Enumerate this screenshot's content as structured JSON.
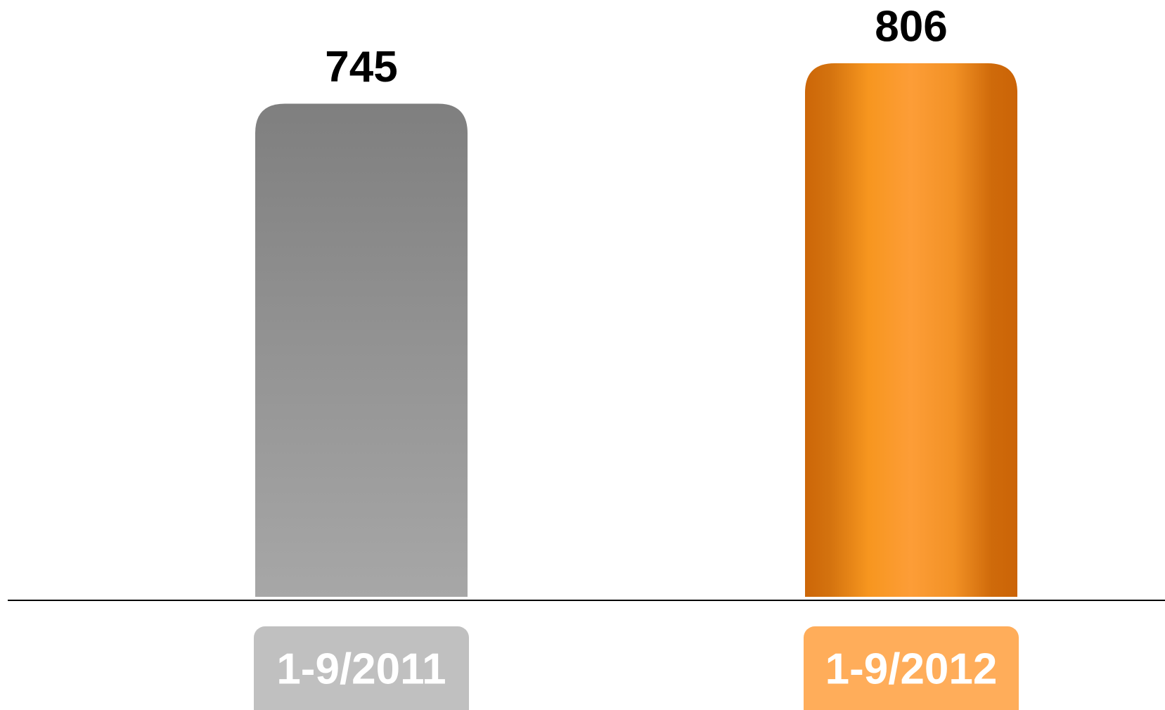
{
  "chart_data": {
    "type": "bar",
    "categories": [
      "1-9/2011",
      "1-9/2012"
    ],
    "values": [
      745,
      806
    ],
    "colors": [
      "#999999",
      "#f7931e"
    ],
    "label_colors": [
      "#c0c0c0",
      "#ffad5a"
    ]
  }
}
